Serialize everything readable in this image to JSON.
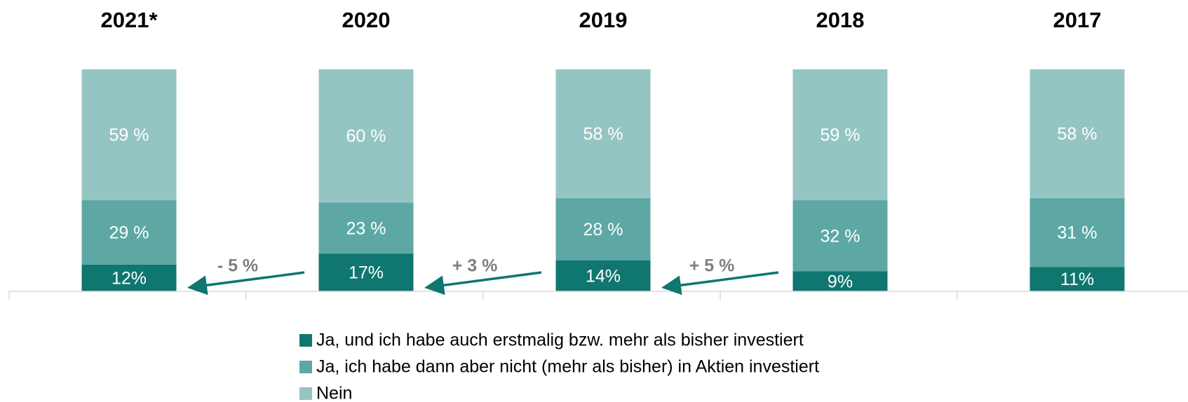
{
  "chart_data": {
    "type": "stacked-bar",
    "categories": [
      "2021*",
      "2020",
      "2019",
      "2018",
      "2017"
    ],
    "series": [
      {
        "name": "Ja, und ich habe auch erstmalig bzw. mehr als bisher investiert",
        "color": "#0f7670",
        "values": [
          12,
          17,
          14,
          9,
          11
        ],
        "value_labels": [
          "12%",
          "17%",
          "14%",
          "9%",
          "11%"
        ]
      },
      {
        "name": "Ja, ich habe dann aber nicht (mehr als bisher) in Aktien investiert",
        "color": "#5da8a4",
        "values": [
          29,
          23,
          28,
          32,
          31
        ],
        "value_labels": [
          "29 %",
          "23 %",
          "28 %",
          "32 %",
          "31 %"
        ]
      },
      {
        "name": "Nein",
        "color": "#95c5c2",
        "values": [
          59,
          60,
          58,
          59,
          58
        ],
        "value_labels": [
          "59 %",
          "60 %",
          "58 %",
          "59 %",
          "58 %"
        ]
      }
    ],
    "annotations": [
      "- 5 %",
      "+ 3 %",
      "+ 5 %"
    ],
    "ylim": [
      0,
      100
    ]
  }
}
